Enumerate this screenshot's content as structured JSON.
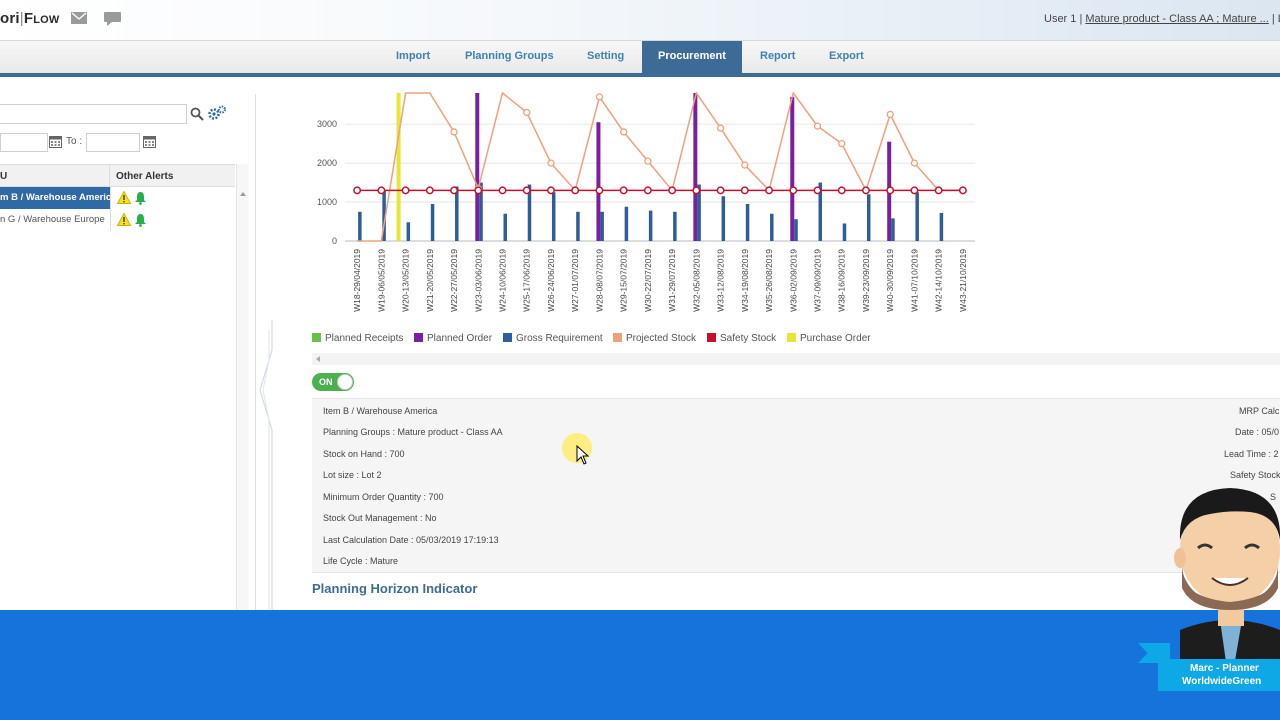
{
  "header": {
    "logo_main": "ori",
    "logo_sep": "|",
    "logo_second": "Flow",
    "user_label": "User 1 |",
    "user_context": "Mature product - Class AA ; Mature ...",
    "user_extra": "| L"
  },
  "nav": {
    "items": [
      "Import",
      "Planning Groups",
      "Setting",
      "Procurement",
      "Report",
      "Export"
    ],
    "active": "Procurement"
  },
  "left_panel": {
    "search_value": "",
    "to_label": "To :",
    "date_from": "",
    "date_to": "",
    "columns": [
      "U",
      "Other Alerts"
    ],
    "rows": [
      {
        "label": "m B / Warehouse America",
        "selected": true
      },
      {
        "label": "n G / Warehouse Europe",
        "selected": false
      }
    ]
  },
  "chart_data": {
    "type": "bar",
    "categories": [
      "W18-29/04/2019",
      "W19-06/05/2019",
      "W20-13/05/2019",
      "W21-20/05/2019",
      "W22-27/05/2019",
      "W23-03/06/2019",
      "W24-10/06/2019",
      "W25-17/06/2019",
      "W26-24/06/2019",
      "W27-01/07/2019",
      "W28-08/07/2019",
      "W29-15/07/2019",
      "W30-22/07/2019",
      "W31-29/07/2019",
      "W32-05/08/2019",
      "W33-12/08/2019",
      "W34-19/08/2019",
      "W35-26/08/2019",
      "W36-02/09/2019",
      "W37-09/09/2019",
      "W38-16/09/2019",
      "W39-23/09/2019",
      "W40-30/09/2019",
      "W41-07/10/2019",
      "W42-14/10/2019",
      "W43-21/10/2019"
    ],
    "ylim": [
      0,
      3800
    ],
    "yticks": [
      0,
      1000,
      2000,
      3000
    ],
    "series": [
      {
        "name": "Planned Receipts",
        "color": "#6abf4b",
        "values": [
          0,
          0,
          0,
          0,
          0,
          0,
          0,
          0,
          0,
          0,
          0,
          0,
          0,
          0,
          0,
          0,
          0,
          0,
          0,
          0,
          0,
          0,
          0,
          0,
          0,
          0
        ]
      },
      {
        "name": "Planned Order",
        "color": "#7b1fa2",
        "values": [
          0,
          0,
          0,
          0,
          0,
          3800,
          0,
          0,
          0,
          0,
          3050,
          0,
          0,
          0,
          3800,
          0,
          0,
          0,
          3700,
          0,
          0,
          0,
          2550,
          0,
          0,
          0
        ]
      },
      {
        "name": "Gross Requirement",
        "color": "#2f5d9a",
        "values": [
          750,
          1300,
          480,
          950,
          1400,
          1500,
          700,
          1450,
          1250,
          750,
          750,
          880,
          780,
          750,
          1450,
          1150,
          950,
          700,
          560,
          1500,
          450,
          1200,
          580,
          1250,
          720,
          0
        ]
      },
      {
        "name": "Projected Stock",
        "color": "#f0a07a",
        "values": [
          0,
          0,
          3800,
          3800,
          2800,
          1350,
          3800,
          3300,
          2000,
          1300,
          3700,
          2800,
          2050,
          1300,
          3800,
          2900,
          1950,
          1300,
          3800,
          2950,
          2500,
          1300,
          3250,
          2000,
          1300,
          1300
        ]
      },
      {
        "name": "Safety Stock",
        "color": "#c8102e",
        "values": [
          1300,
          1300,
          1300,
          1300,
          1300,
          1300,
          1300,
          1300,
          1300,
          1300,
          1300,
          1300,
          1300,
          1300,
          1300,
          1300,
          1300,
          1300,
          1300,
          1300,
          1300,
          1300,
          1300,
          1300,
          1300,
          1300
        ]
      },
      {
        "name": "Purchase Order",
        "color": "#e6e635",
        "values": [
          0,
          0,
          3800,
          0,
          0,
          0,
          0,
          0,
          0,
          0,
          0,
          0,
          0,
          0,
          0,
          0,
          0,
          0,
          0,
          0,
          0,
          0,
          0,
          0,
          0,
          0
        ]
      }
    ],
    "grid": true,
    "legend_placement": "bottom"
  },
  "toggle": {
    "label": "ON"
  },
  "item_info": {
    "lines": [
      "Item B / Warehouse America",
      "Planning Groups : Mature product - Class AA",
      "Stock on Hand : 700",
      "Lot size : Lot 2",
      "Minimum Order Quantity : 700",
      "Stock Out Management : No",
      "Last Calculation Date : 05/03/2019 17:19:13",
      "Life Cycle : Mature"
    ],
    "right_lines": [
      "MRP Calc",
      "Date : 05/0",
      "Lead Time : 2",
      "Safety Stock",
      "S"
    ]
  },
  "section": {
    "title": "Planning Horizon Indicator"
  },
  "presenter": {
    "name": "Marc - Planner",
    "company": "WorldwideGreen"
  },
  "colors": {
    "accent": "#3d6b95",
    "banner": "#1673db",
    "selected_row": "#2f6aa7"
  }
}
